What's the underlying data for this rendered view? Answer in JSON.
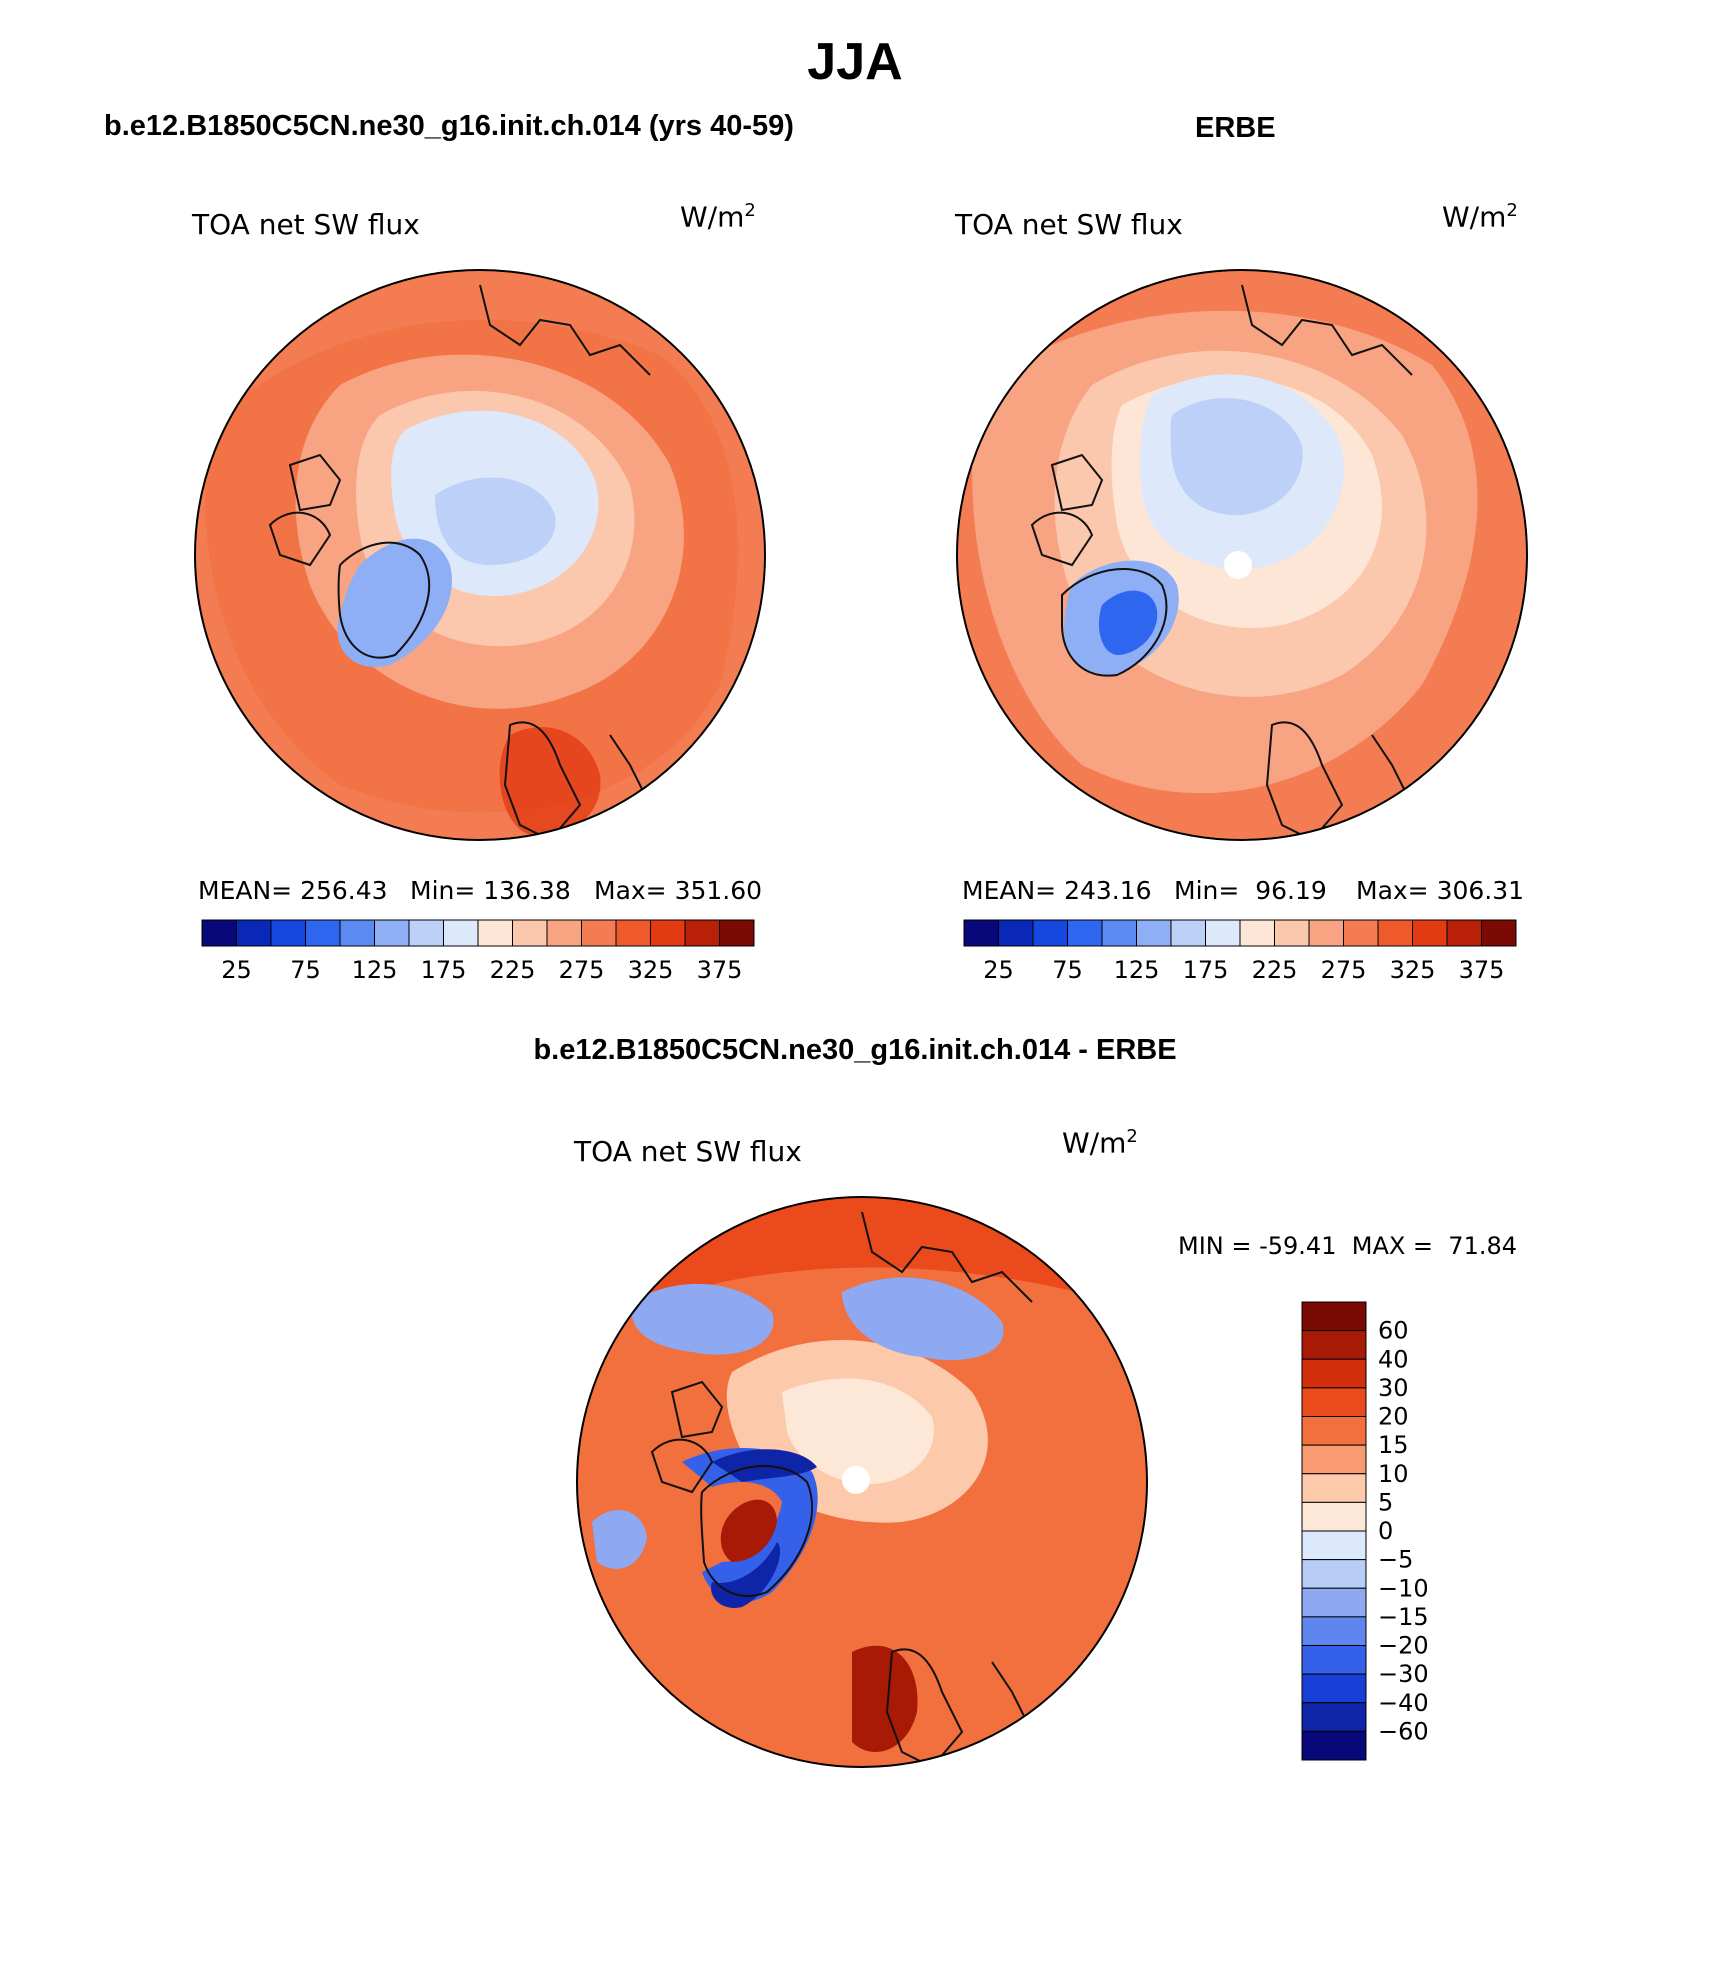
{
  "page": {
    "title": "JJA"
  },
  "panels": {
    "model": {
      "header": "b.e12.B1850C5CN.ne30_g16.init.ch.014 (yrs 40-59)",
      "variable": "TOA net SW flux",
      "units_base": "W/m",
      "units_exp": "2",
      "stats": {
        "mean": "MEAN= 256.43",
        "min": "Min= 136.38",
        "max": "Max= 351.60"
      },
      "colorbar_colors": [
        "#08087a",
        "#0a28b8",
        "#1647e0",
        "#2f66f0",
        "#5b8af2",
        "#8eaef5",
        "#bcd0f8",
        "#dde9fb",
        "#fde6d6",
        "#fbc7ad",
        "#f8a381",
        "#f47c52",
        "#ef5a2d",
        "#e23b14",
        "#b82108",
        "#7c0a04"
      ],
      "colorbar_labels": [
        "25",
        "75",
        "125",
        "175",
        "225",
        "275",
        "325",
        "375"
      ]
    },
    "obs": {
      "header": "ERBE",
      "variable": "TOA net SW flux",
      "units_base": "W/m",
      "units_exp": "2",
      "stats": {
        "mean": "MEAN= 243.16",
        "min": "Min=  96.19",
        "max": "Max= 306.31"
      },
      "colorbar_colors": [
        "#08087a",
        "#0a28b8",
        "#1647e0",
        "#2f66f0",
        "#5b8af2",
        "#8eaef5",
        "#bcd0f8",
        "#dde9fb",
        "#fde6d6",
        "#fbc7ad",
        "#f8a381",
        "#f47c52",
        "#ef5a2d",
        "#e23b14",
        "#b82108",
        "#7c0a04"
      ],
      "colorbar_labels": [
        "25",
        "75",
        "125",
        "175",
        "225",
        "275",
        "325",
        "375"
      ]
    },
    "diff": {
      "header": "b.e12.B1850C5CN.ne30_g16.init.ch.014 - ERBE",
      "variable": "TOA net SW flux",
      "units_base": "W/m",
      "units_exp": "2",
      "minmax": "MIN = -59.41  MAX =  71.84",
      "colorbar_colors": [
        "#7c0a04",
        "#a81a06",
        "#d2300c",
        "#ea4a1c",
        "#f1703e",
        "#f89a72",
        "#fcc9aa",
        "#fde8d8",
        "#dce8fb",
        "#b8cdf6",
        "#8ea9f1",
        "#5f86ee",
        "#3560ea",
        "#1a3fd6",
        "#0e25a8",
        "#08087a"
      ],
      "colorbar_labels": [
        "60",
        "40",
        "30",
        "20",
        "15",
        "10",
        "5",
        "0",
        "-5",
        "-10",
        "-15",
        "-20",
        "-30",
        "-40",
        "-60"
      ]
    }
  }
}
